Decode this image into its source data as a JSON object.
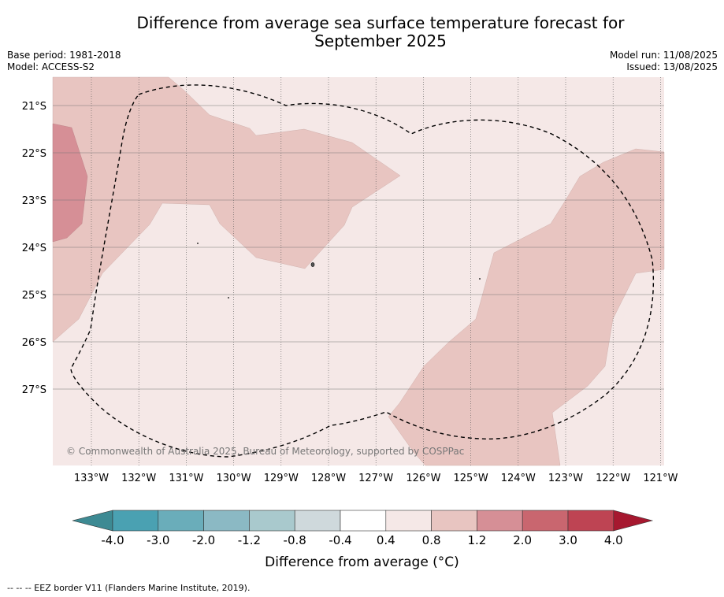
{
  "header": {
    "title_line1": "Difference from average sea surface temperature forecast for",
    "title_line2": "September 2025",
    "base_period": "Base period: 1981-2018",
    "model": "Model: ACCESS-S2",
    "model_run": "Model run: 11/08/2025",
    "issued": "Issued: 13/08/2025"
  },
  "map": {
    "lon_ticks": [
      "133°W",
      "132°W",
      "131°W",
      "130°W",
      "129°W",
      "128°W",
      "127°W",
      "126°W",
      "125°W",
      "124°W",
      "123°W",
      "122°W",
      "121°W"
    ],
    "lat_ticks": [
      "21°S",
      "22°S",
      "23°S",
      "24°S",
      "25°S",
      "26°S",
      "27°S"
    ],
    "credit": "© Commonwealth of Australia 2025, Bureau of Meteorology, supported by COSPPac"
  },
  "colorbar": {
    "labels": [
      "-4.0",
      "-3.0",
      "-2.0",
      "-1.2",
      "-0.8",
      "-0.4",
      "0.4",
      "0.8",
      "1.2",
      "2.0",
      "3.0",
      "4.0"
    ],
    "colors": [
      "#3d8a93",
      "#4aa1b2",
      "#6aadba",
      "#8bb9c4",
      "#a9c9cd",
      "#cfd9dc",
      "#ffffff",
      "#f5e8e7",
      "#e8c5c1",
      "#d68f96",
      "#c9666f",
      "#be4453",
      "#a6182f"
    ],
    "title": "Difference from average (°C)"
  },
  "footer": {
    "eez_note": "-- -- -- EEZ border V11 (Flanders Marine Institute, 2019)."
  },
  "colors": {
    "band_0_4_0_8": "#f5e8e7",
    "band_0_8_1_2": "#e8c5c1",
    "band_1_2_2_0": "#d68f96"
  }
}
